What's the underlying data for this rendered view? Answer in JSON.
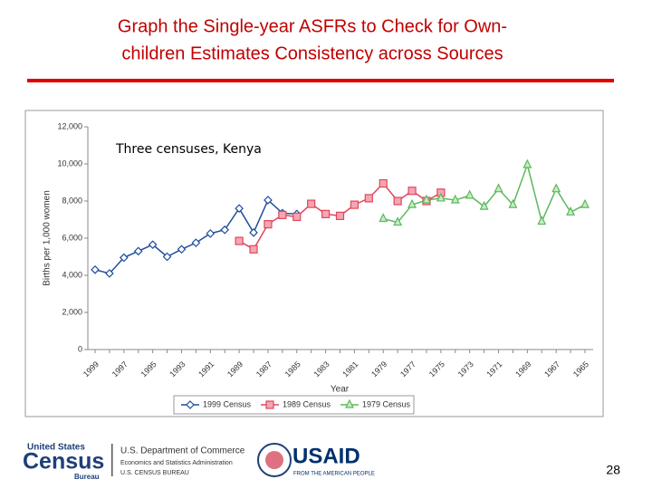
{
  "slide": {
    "title_lines": [
      "Graph the Single-year ASFRs to Check for Own-",
      "children Estimates Consistency across Sources"
    ],
    "page_number": "28",
    "footer": {
      "census_top": "United States",
      "census_main": "Census",
      "census_sub": "Bureau",
      "commerce": "U.S. Department of Commerce",
      "esa": "Economics and Statistics Administration",
      "bureau": "U.S. CENSUS BUREAU",
      "usaid": "USAID",
      "usaid_sub": "FROM THE AMERICAN PEOPLE"
    }
  },
  "chart_data": {
    "type": "line",
    "annotation": "Three censuses, Kenya",
    "x_label": "Year",
    "y_label": "Births per 1,000 women",
    "categories": [
      "1999",
      null,
      "1997",
      null,
      "1995",
      null,
      "1993",
      null,
      "1991",
      null,
      "1989",
      null,
      "1987",
      null,
      "1985",
      null,
      "1983",
      null,
      "1981",
      null,
      "1979",
      null,
      "1977",
      null,
      "1975",
      null,
      "1973",
      null,
      "1971",
      null,
      "1969",
      null,
      "1967",
      null,
      "1965"
    ],
    "ylim": [
      0,
      12000
    ],
    "yticks": [
      0,
      {
        "value": 2000,
        "label": "2,000"
      },
      {
        "value": 4000,
        "label": "4,000"
      },
      {
        "value": 6000,
        "label": "6,000"
      },
      {
        "value": 8000,
        "label": "8,000"
      },
      {
        "value": 10000,
        "label": "10,000"
      },
      {
        "value": 12000,
        "label": "12,000"
      }
    ],
    "series": [
      {
        "name": "1999 Census",
        "color": "#1f4e9c",
        "marker": "diamond",
        "values": [
          4300,
          4100,
          4950,
          5300,
          5650,
          5000,
          5400,
          5750,
          6250,
          6450,
          7600,
          6300,
          8050,
          7350,
          7300,
          null,
          null,
          null,
          null,
          null,
          null,
          null,
          null,
          null,
          null,
          null,
          null,
          null,
          null,
          null,
          null,
          null,
          null,
          null,
          null
        ]
      },
      {
        "name": "1989 Census",
        "color": "#e0475b",
        "marker": "square",
        "values": [
          null,
          null,
          null,
          null,
          null,
          null,
          null,
          null,
          null,
          null,
          5850,
          5400,
          6750,
          7250,
          7150,
          7850,
          7300,
          7200,
          7800,
          8150,
          8950,
          8000,
          8550,
          8000,
          8450,
          null,
          null,
          null,
          null,
          null,
          null,
          null,
          null,
          null,
          null
        ]
      },
      {
        "name": "1979 Census",
        "color": "#5cb85c",
        "marker": "triangle",
        "values": [
          null,
          null,
          null,
          null,
          null,
          null,
          null,
          null,
          null,
          null,
          null,
          null,
          null,
          null,
          null,
          null,
          null,
          null,
          null,
          null,
          7050,
          6850,
          7800,
          8050,
          8150,
          8050,
          8300,
          7700,
          8650,
          7800,
          9950,
          6900,
          8650,
          7400,
          7800
        ]
      }
    ]
  }
}
